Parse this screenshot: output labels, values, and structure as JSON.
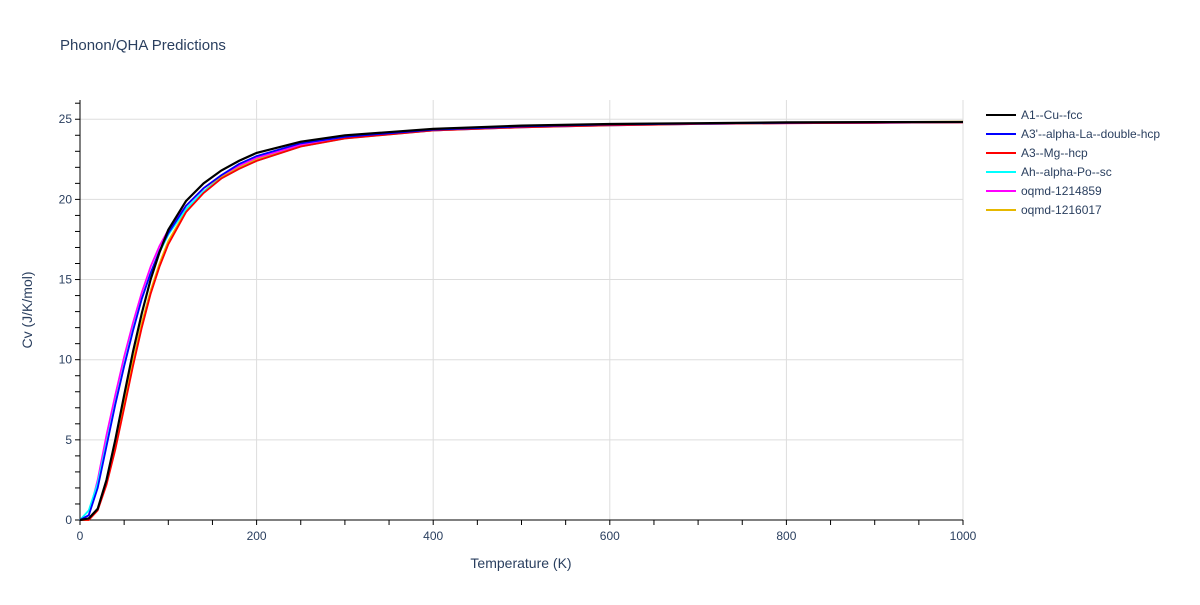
{
  "chart_data": {
    "type": "line",
    "title": "Phonon/QHA Predictions",
    "xlabel": "Temperature (K)",
    "ylabel": "Cv (J/K/mol)",
    "xlim": [
      0,
      1000
    ],
    "ylim": [
      0,
      26.2
    ],
    "xticks": [
      0,
      200,
      400,
      600,
      800,
      1000
    ],
    "yticks": [
      0,
      5,
      10,
      15,
      20,
      25
    ],
    "grid": true,
    "legend": "right",
    "x": [
      0,
      10,
      20,
      30,
      40,
      50,
      60,
      70,
      80,
      90,
      100,
      120,
      140,
      160,
      180,
      200,
      250,
      300,
      400,
      500,
      600,
      700,
      800,
      900,
      1000
    ],
    "series": [
      {
        "name": "A1--Cu--fcc",
        "color": "#000000",
        "values": [
          0,
          0.1,
          0.7,
          2.5,
          5.0,
          7.8,
          10.5,
          12.9,
          15.0,
          16.7,
          18.1,
          19.9,
          21.0,
          21.8,
          22.4,
          22.9,
          23.6,
          24.0,
          24.4,
          24.6,
          24.7,
          24.75,
          24.8,
          24.82,
          24.83
        ]
      },
      {
        "name": "A3'--alpha-La--double-hcp",
        "color": "#0000ff",
        "values": [
          0,
          0.3,
          2.0,
          4.6,
          7.2,
          9.6,
          11.8,
          13.8,
          15.4,
          16.8,
          17.9,
          19.6,
          20.7,
          21.5,
          22.2,
          22.7,
          23.5,
          23.9,
          24.35,
          24.55,
          24.67,
          24.73,
          24.78,
          24.8,
          24.82
        ]
      },
      {
        "name": "A3--Mg--hcp",
        "color": "#ff0000",
        "values": [
          0,
          0,
          0.6,
          2.2,
          4.4,
          7.0,
          9.6,
          12.0,
          14.1,
          15.8,
          17.2,
          19.2,
          20.4,
          21.3,
          21.9,
          22.4,
          23.3,
          23.8,
          24.3,
          24.5,
          24.62,
          24.7,
          24.75,
          24.78,
          24.8
        ]
      },
      {
        "name": "Ah--alpha-Po--sc",
        "color": "#00ffff",
        "values": [
          0,
          0.6,
          2.3,
          4.8,
          7.3,
          9.7,
          11.9,
          13.8,
          15.4,
          16.7,
          17.8,
          19.4,
          20.5,
          21.3,
          21.9,
          22.4,
          23.3,
          23.8,
          24.3,
          24.5,
          24.62,
          24.7,
          24.76,
          24.8,
          24.82
        ]
      },
      {
        "name": "oqmd-1214859",
        "color": "#ff00ff",
        "values": [
          0,
          0.3,
          2.5,
          5.3,
          7.8,
          10.2,
          12.3,
          14.2,
          15.8,
          17.1,
          18.1,
          19.6,
          20.7,
          21.5,
          22.1,
          22.6,
          23.4,
          23.85,
          24.3,
          24.5,
          24.62,
          24.7,
          24.75,
          24.78,
          24.8
        ]
      },
      {
        "name": "oqmd-1216017",
        "color": "#e6b800",
        "values": [
          0,
          0,
          0.7,
          2.4,
          4.7,
          7.3,
          9.9,
          12.3,
          14.3,
          16.0,
          17.4,
          19.3,
          20.5,
          21.4,
          22.0,
          22.5,
          23.35,
          23.85,
          24.3,
          24.52,
          24.65,
          24.72,
          24.78,
          24.82,
          24.85
        ]
      }
    ]
  }
}
